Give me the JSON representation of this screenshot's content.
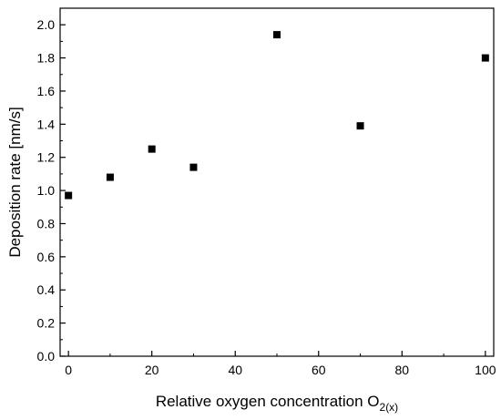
{
  "chart_data": {
    "type": "scatter",
    "title": "",
    "xlabel": "Relative oxygen concentration O",
    "xlabel_subscript": "2(x)",
    "ylabel": "Deposition rate [nm/s]",
    "xlim": [
      -2,
      102
    ],
    "ylim": [
      0.0,
      2.1
    ],
    "x_ticks": [
      0,
      20,
      40,
      60,
      80,
      100
    ],
    "y_ticks": [
      0.0,
      0.2,
      0.4,
      0.6,
      0.8,
      1.0,
      1.2,
      1.4,
      1.6,
      1.8,
      2.0
    ],
    "y_tick_labels": [
      "0.0",
      "0.2",
      "0.4",
      "0.6",
      "0.8",
      "1.0",
      "1.2",
      "1.4",
      "1.6",
      "1.8",
      "2.0"
    ],
    "x_tick_labels": [
      "0",
      "20",
      "40",
      "60",
      "80",
      "100"
    ],
    "marker": "square",
    "marker_color": "#000000",
    "grid": false,
    "points": [
      {
        "x": 0,
        "y": 0.97
      },
      {
        "x": 10,
        "y": 1.08
      },
      {
        "x": 20,
        "y": 1.25
      },
      {
        "x": 30,
        "y": 1.14
      },
      {
        "x": 50,
        "y": 1.94
      },
      {
        "x": 70,
        "y": 1.39
      },
      {
        "x": 100,
        "y": 1.8
      }
    ]
  }
}
